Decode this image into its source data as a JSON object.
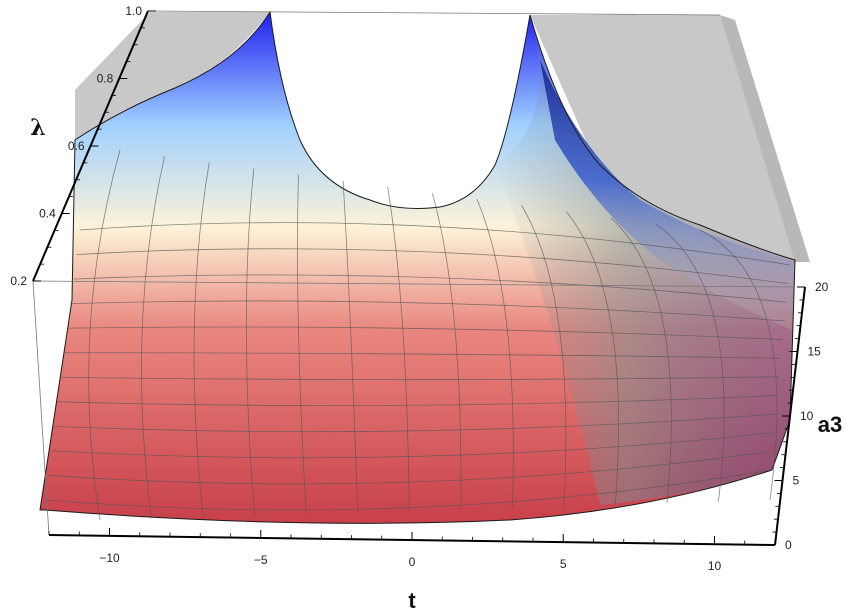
{
  "chart_data": {
    "type": "surface3d",
    "xlabel": "t",
    "ylabel": "a3",
    "zlabel": "λ",
    "x_ticks": [
      {
        "value": -10,
        "label": "−10"
      },
      {
        "value": -5,
        "label": "−5"
      },
      {
        "value": 0,
        "label": "0"
      },
      {
        "value": 5,
        "label": "5"
      },
      {
        "value": 10,
        "label": "10"
      }
    ],
    "y_ticks": [
      {
        "value": 0,
        "label": "0"
      },
      {
        "value": 5,
        "label": "5"
      },
      {
        "value": 10,
        "label": "10"
      },
      {
        "value": 15,
        "label": "15"
      },
      {
        "value": 20,
        "label": "20"
      }
    ],
    "z_ticks": [
      {
        "value": 0.2,
        "label": "0.2"
      },
      {
        "value": 0.4,
        "label": "0.4"
      },
      {
        "value": 0.6,
        "label": "0.6"
      },
      {
        "value": 0.8,
        "label": "0.8"
      },
      {
        "value": 1.0,
        "label": "1.0"
      }
    ],
    "xlim": [
      -12,
      12
    ],
    "ylim": [
      0,
      20
    ],
    "zlim": [
      0.2,
      1.0
    ],
    "mesh_lines": true,
    "colors": {
      "low": "#c8404a",
      "mid": "#fdf3d8",
      "high": "#1e1ef0",
      "clip_plane": "#c8c8c8"
    }
  }
}
